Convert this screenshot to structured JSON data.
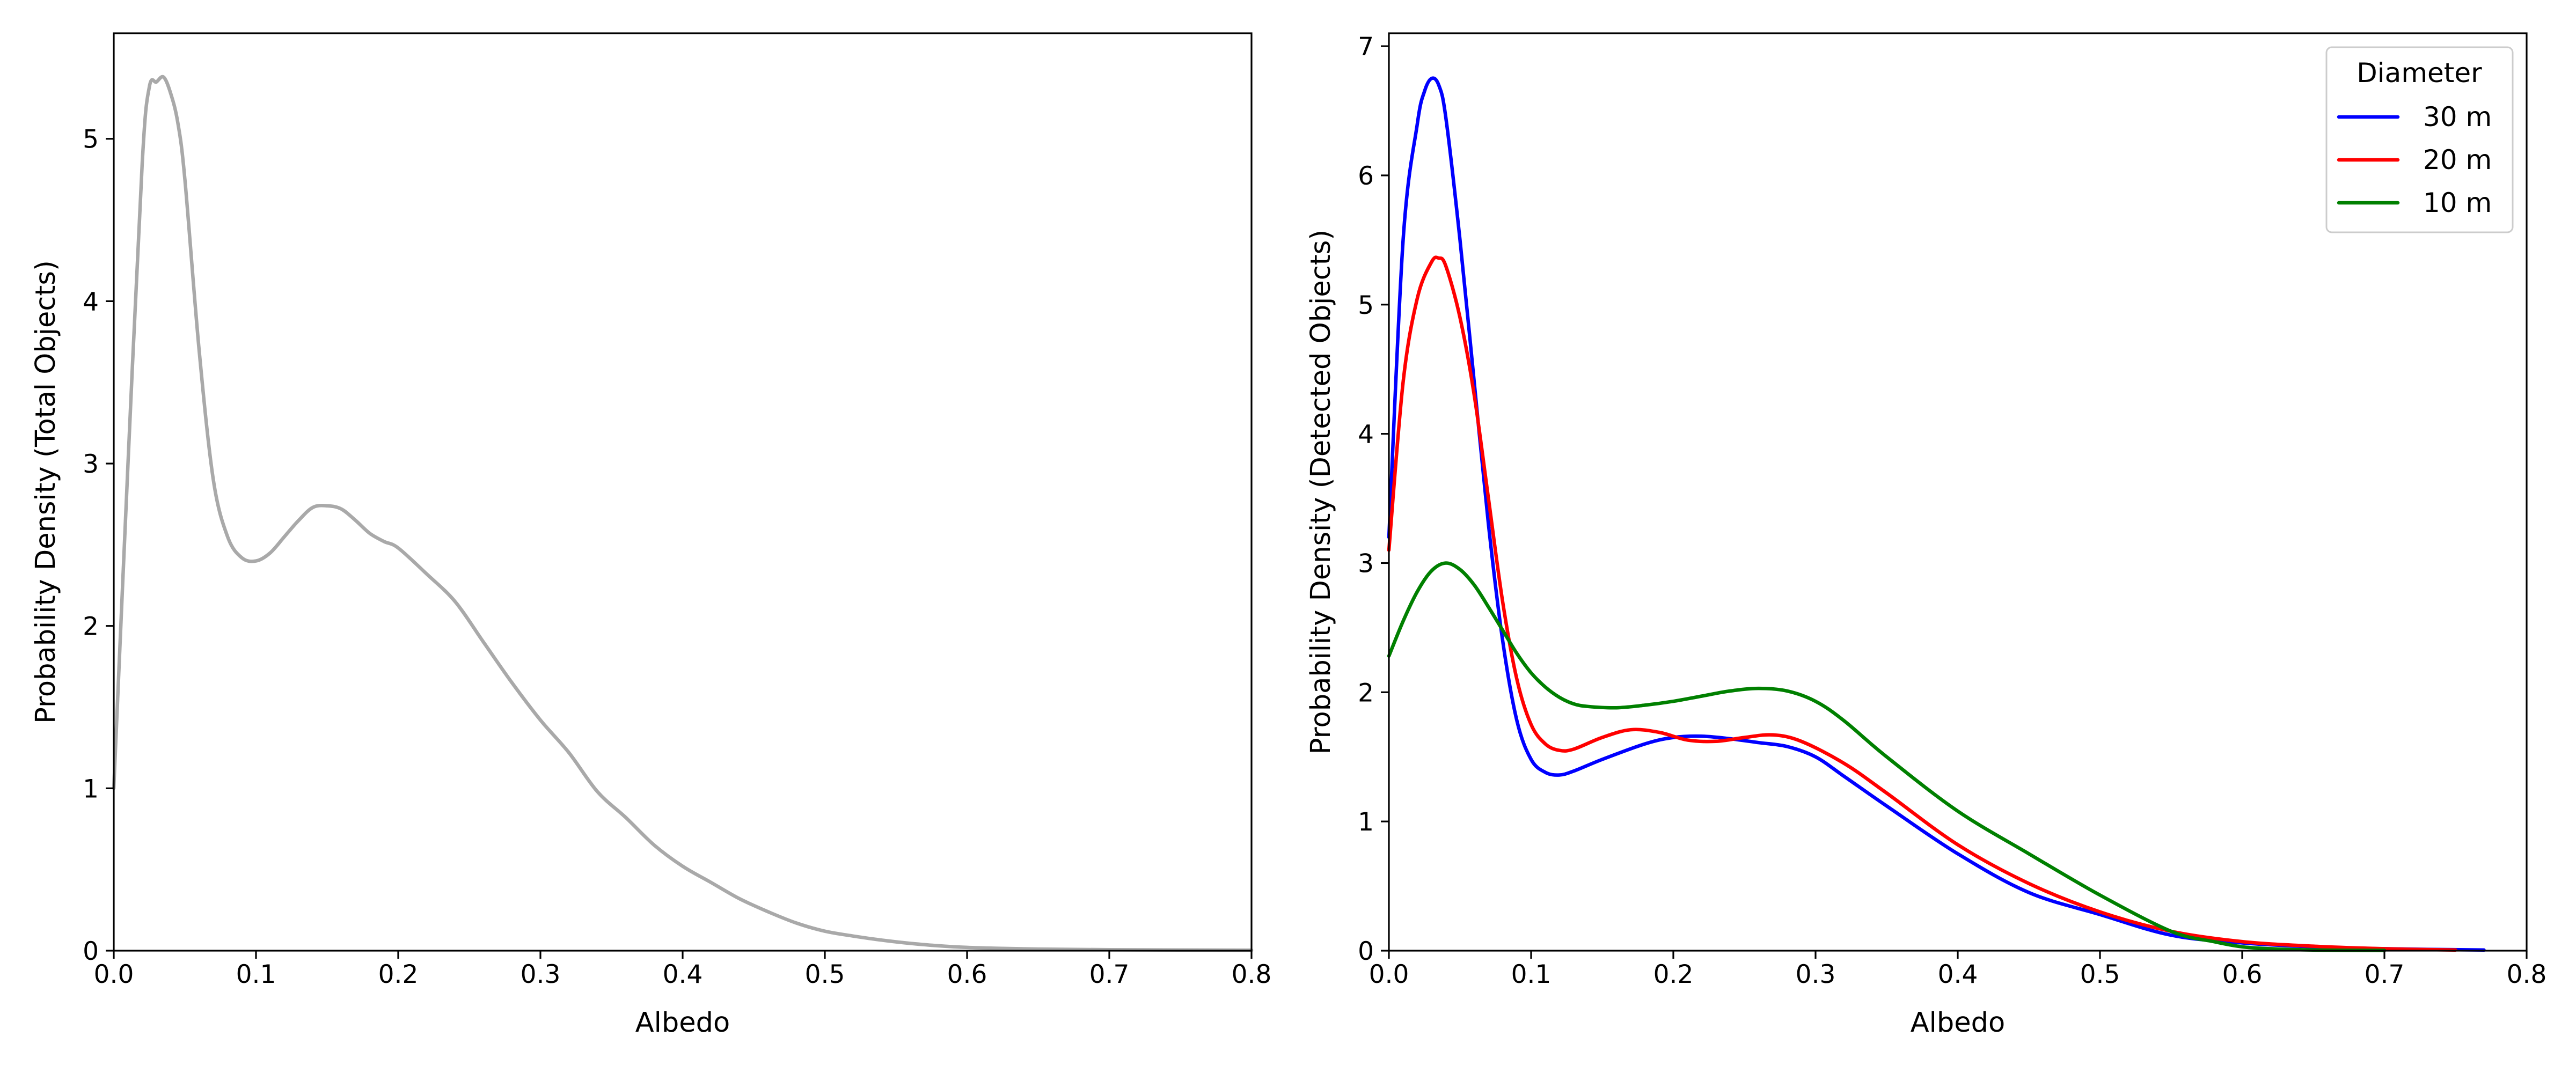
{
  "chart_data": [
    {
      "type": "line",
      "xlabel": "Albedo",
      "ylabel": "Probability Density (Total Objects)",
      "xlim": [
        0.0,
        0.8
      ],
      "ylim": [
        0,
        5.65
      ],
      "xticks": [
        "0.0",
        "0.1",
        "0.2",
        "0.3",
        "0.4",
        "0.5",
        "0.6",
        "0.7",
        "0.8"
      ],
      "yticks": [
        "0",
        "1",
        "2",
        "3",
        "4",
        "5"
      ],
      "grid": false,
      "series": [
        {
          "color": "#a9a9a9",
          "x": [
            0.0,
            0.01,
            0.02,
            0.025,
            0.03,
            0.035,
            0.04,
            0.045,
            0.05,
            0.06,
            0.07,
            0.08,
            0.09,
            0.1,
            0.11,
            0.12,
            0.13,
            0.14,
            0.15,
            0.16,
            0.17,
            0.18,
            0.19,
            0.2,
            0.22,
            0.24,
            0.26,
            0.28,
            0.3,
            0.32,
            0.34,
            0.36,
            0.38,
            0.4,
            0.42,
            0.44,
            0.46,
            0.48,
            0.5,
            0.52,
            0.54,
            0.56,
            0.58,
            0.6,
            0.62,
            0.65,
            0.7,
            0.75,
            0.8
          ],
          "y": [
            1.0,
            3.0,
            4.85,
            5.32,
            5.35,
            5.38,
            5.28,
            5.1,
            4.75,
            3.7,
            2.9,
            2.55,
            2.42,
            2.4,
            2.45,
            2.55,
            2.65,
            2.73,
            2.74,
            2.72,
            2.65,
            2.57,
            2.52,
            2.48,
            2.32,
            2.15,
            1.9,
            1.65,
            1.42,
            1.22,
            0.98,
            0.82,
            0.65,
            0.52,
            0.42,
            0.32,
            0.24,
            0.17,
            0.12,
            0.09,
            0.065,
            0.045,
            0.03,
            0.02,
            0.015,
            0.01,
            0.006,
            0.004,
            0.003
          ]
        }
      ]
    },
    {
      "type": "line",
      "xlabel": "Albedo",
      "ylabel": "Probability Density (Detected Objects)",
      "xlim": [
        0.0,
        0.8
      ],
      "ylim": [
        0,
        7.1
      ],
      "xticks": [
        "0.0",
        "0.1",
        "0.2",
        "0.3",
        "0.4",
        "0.5",
        "0.6",
        "0.7",
        "0.8"
      ],
      "yticks": [
        "0",
        "1",
        "2",
        "3",
        "4",
        "5",
        "6",
        "7"
      ],
      "grid": false,
      "legend": {
        "title": "Diameter",
        "position": "top-right"
      },
      "series": [
        {
          "name": "30 m",
          "color": "#0000ff",
          "x": [
            0.0,
            0.01,
            0.02,
            0.025,
            0.03,
            0.035,
            0.04,
            0.05,
            0.06,
            0.07,
            0.08,
            0.09,
            0.1,
            0.11,
            0.12,
            0.13,
            0.15,
            0.18,
            0.2,
            0.22,
            0.24,
            0.26,
            0.28,
            0.3,
            0.32,
            0.35,
            0.4,
            0.45,
            0.5,
            0.55,
            0.6,
            0.65,
            0.7,
            0.77
          ],
          "y": [
            3.2,
            5.5,
            6.4,
            6.65,
            6.75,
            6.7,
            6.45,
            5.5,
            4.4,
            3.3,
            2.4,
            1.78,
            1.48,
            1.38,
            1.36,
            1.39,
            1.48,
            1.6,
            1.65,
            1.66,
            1.64,
            1.61,
            1.58,
            1.5,
            1.35,
            1.12,
            0.75,
            0.45,
            0.28,
            0.12,
            0.06,
            0.03,
            0.015,
            0.005
          ]
        },
        {
          "name": "20 m",
          "color": "#ff0000",
          "x": [
            0.0,
            0.01,
            0.02,
            0.03,
            0.035,
            0.04,
            0.05,
            0.06,
            0.07,
            0.08,
            0.09,
            0.1,
            0.11,
            0.12,
            0.13,
            0.15,
            0.17,
            0.19,
            0.21,
            0.23,
            0.25,
            0.27,
            0.29,
            0.32,
            0.35,
            0.4,
            0.45,
            0.5,
            0.55,
            0.6,
            0.65,
            0.7,
            0.75
          ],
          "y": [
            3.1,
            4.4,
            5.05,
            5.33,
            5.36,
            5.3,
            4.9,
            4.3,
            3.5,
            2.7,
            2.1,
            1.75,
            1.6,
            1.55,
            1.56,
            1.65,
            1.71,
            1.69,
            1.63,
            1.62,
            1.65,
            1.67,
            1.62,
            1.45,
            1.22,
            0.82,
            0.52,
            0.3,
            0.15,
            0.07,
            0.035,
            0.015,
            0.005
          ]
        },
        {
          "name": "10 m",
          "color": "#008000",
          "x": [
            0.0,
            0.01,
            0.02,
            0.03,
            0.04,
            0.05,
            0.06,
            0.07,
            0.08,
            0.09,
            0.1,
            0.11,
            0.12,
            0.13,
            0.14,
            0.16,
            0.18,
            0.2,
            0.22,
            0.24,
            0.26,
            0.28,
            0.3,
            0.32,
            0.35,
            0.4,
            0.45,
            0.5,
            0.55,
            0.58,
            0.6,
            0.62,
            0.65,
            0.7
          ],
          "y": [
            2.28,
            2.55,
            2.78,
            2.94,
            3.0,
            2.95,
            2.83,
            2.66,
            2.48,
            2.3,
            2.15,
            2.04,
            1.96,
            1.91,
            1.89,
            1.88,
            1.9,
            1.93,
            1.97,
            2.01,
            2.03,
            2.01,
            1.93,
            1.78,
            1.5,
            1.08,
            0.75,
            0.43,
            0.15,
            0.07,
            0.03,
            0.015,
            0.005,
            0.002
          ]
        }
      ]
    }
  ]
}
